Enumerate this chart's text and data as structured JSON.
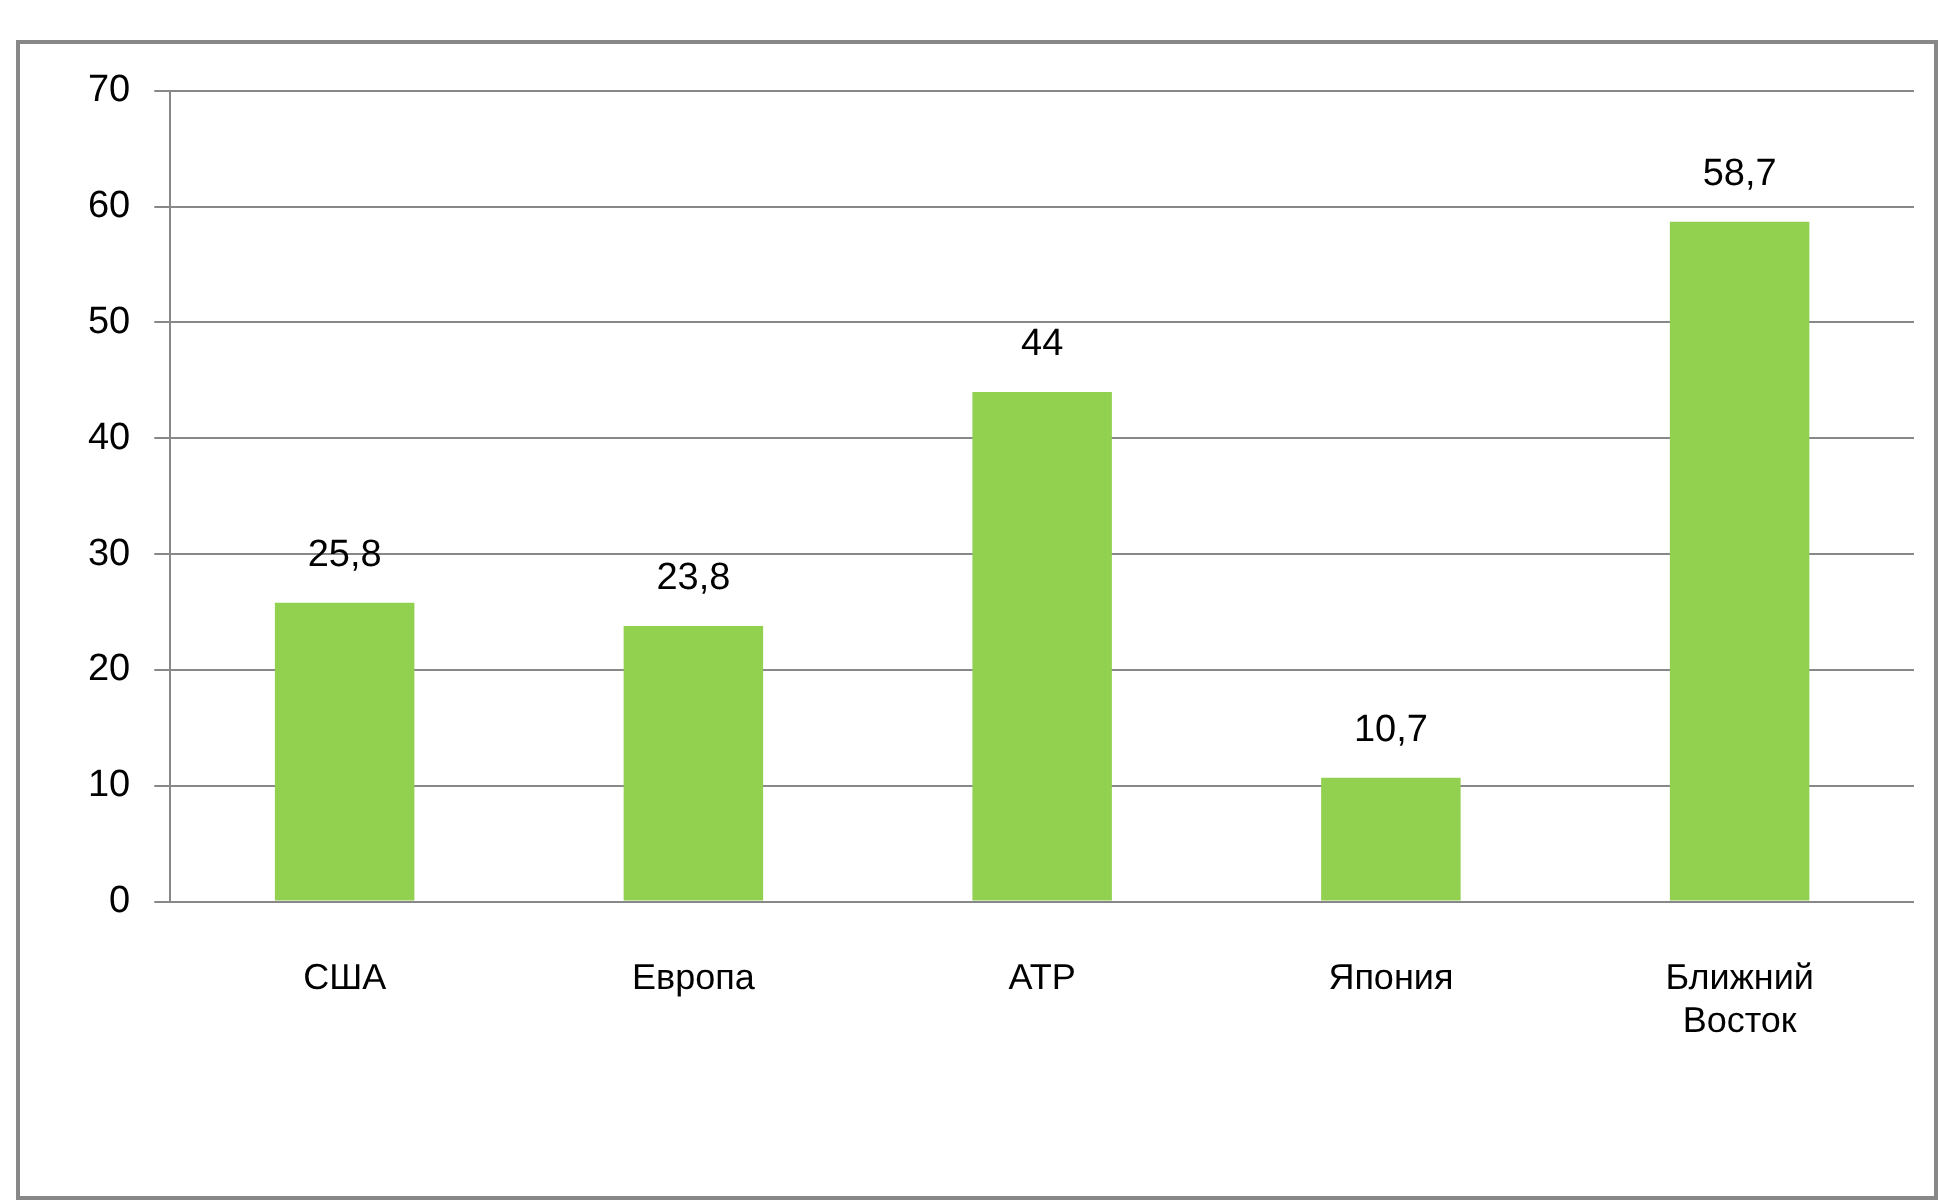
{
  "chart_data": {
    "type": "bar",
    "categories": [
      "США",
      "Европа",
      "АТР",
      "Япония",
      "Ближний Восток"
    ],
    "values": [
      25.8,
      23.8,
      44,
      10.7,
      58.7
    ],
    "value_labels": [
      "25,8",
      "23,8",
      "44",
      "10,7",
      "58,7"
    ],
    "color": "#92d050",
    "ylim": [
      0,
      70
    ],
    "yticks": [
      0,
      10,
      20,
      30,
      40,
      50,
      60,
      70
    ],
    "grid": "y",
    "legend": false
  }
}
